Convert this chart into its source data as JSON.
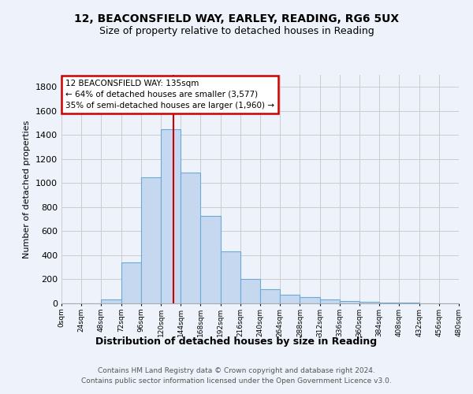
{
  "title1": "12, BEACONSFIELD WAY, EARLEY, READING, RG6 5UX",
  "title2": "Size of property relative to detached houses in Reading",
  "xlabel": "Distribution of detached houses by size in Reading",
  "ylabel": "Number of detached properties",
  "footer1": "Contains HM Land Registry data © Crown copyright and database right 2024.",
  "footer2": "Contains public sector information licensed under the Open Government Licence v3.0.",
  "annotation_line1": "12 BEACONSFIELD WAY: 135sqm",
  "annotation_line2": "← 64% of detached houses are smaller (3,577)",
  "annotation_line3": "35% of semi-detached houses are larger (1,960) →",
  "bar_values": [
    0,
    0,
    30,
    340,
    1050,
    1450,
    1090,
    730,
    430,
    200,
    120,
    70,
    50,
    30,
    20,
    10,
    5,
    5,
    0,
    0
  ],
  "bin_edges": [
    0,
    24,
    48,
    72,
    96,
    120,
    144,
    168,
    192,
    216,
    240,
    264,
    288,
    312,
    336,
    360,
    384,
    408,
    432,
    456,
    480
  ],
  "red_line_x": 135,
  "ylim": [
    0,
    1900
  ],
  "bar_color": "#c5d8f0",
  "bar_edge_color": "#6aaad4",
  "red_line_color": "#cc0000",
  "background_color": "#eef2fb",
  "annotation_box_color": "#ffffff",
  "annotation_box_edge": "#cc0000",
  "grid_color": "#cccccc",
  "yticks": [
    0,
    200,
    400,
    600,
    800,
    1000,
    1200,
    1400,
    1600,
    1800
  ]
}
